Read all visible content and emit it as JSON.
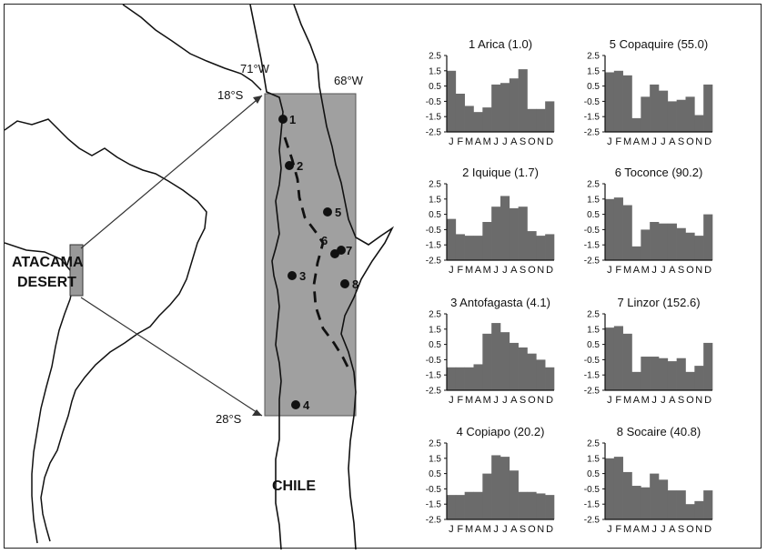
{
  "map": {
    "region_label_line1": "ATACAMA",
    "region_label_line2": "DESERT",
    "country_label": "CHILE",
    "lon_west_label": "71°W",
    "lon_east_label": "68°W",
    "lat_north_label": "18°S",
    "lat_south_label": "28°S",
    "stations": [
      {
        "number": "1",
        "name": "Arica"
      },
      {
        "number": "2",
        "name": "Iquique"
      },
      {
        "number": "3",
        "name": "Antofagasta"
      },
      {
        "number": "4",
        "name": "Copiapo"
      },
      {
        "number": "5",
        "name": "Copaquire"
      },
      {
        "number": "6",
        "name": "Toconce"
      },
      {
        "number": "7",
        "name": "Linzor"
      },
      {
        "number": "8",
        "name": "Socaire"
      }
    ],
    "colors": {
      "box_fill": "#a0a0a0",
      "line": "#111111",
      "dot": "#111111"
    }
  },
  "chart_data": [
    {
      "type": "bar",
      "title": "1 Arica (1.0)",
      "categories": [
        "J",
        "F",
        "M",
        "A",
        "M",
        "J",
        "J",
        "A",
        "S",
        "O",
        "N",
        "D"
      ],
      "values": [
        1.5,
        0.0,
        -0.8,
        -1.2,
        -0.9,
        0.6,
        0.7,
        1.0,
        1.6,
        -1.0,
        -1.0,
        -0.5
      ],
      "ylim": [
        -2.5,
        2.5
      ],
      "yticks": [
        "2.5",
        "1.5",
        "0.5",
        "-0.5",
        "-1.5",
        "-2.5"
      ]
    },
    {
      "type": "bar",
      "title": "5 Copaquire (55.0)",
      "categories": [
        "J",
        "F",
        "M",
        "A",
        "M",
        "J",
        "J",
        "A",
        "S",
        "O",
        "N",
        "D"
      ],
      "values": [
        1.4,
        1.5,
        1.2,
        -1.6,
        -0.2,
        0.6,
        0.2,
        -0.5,
        -0.4,
        -0.2,
        -1.4,
        0.6
      ],
      "ylim": [
        -2.5,
        2.5
      ],
      "yticks": [
        "2.5",
        "1.5",
        "0.5",
        "-0.5",
        "-1.5",
        "-2.5"
      ]
    },
    {
      "type": "bar",
      "title": "2 Iquique (1.7)",
      "categories": [
        "J",
        "F",
        "M",
        "A",
        "M",
        "J",
        "J",
        "A",
        "S",
        "O",
        "N",
        "D"
      ],
      "values": [
        0.2,
        -0.8,
        -0.9,
        -0.9,
        0.0,
        1.0,
        1.7,
        0.9,
        1.0,
        -0.6,
        -0.9,
        -0.8
      ],
      "ylim": [
        -2.5,
        2.5
      ],
      "yticks": [
        "2.5",
        "1.5",
        "0.5",
        "-0.5",
        "-1.5",
        "-2.5"
      ]
    },
    {
      "type": "bar",
      "title": "6 Toconce (90.2)",
      "categories": [
        "J",
        "F",
        "M",
        "A",
        "M",
        "J",
        "J",
        "A",
        "S",
        "O",
        "N",
        "D"
      ],
      "values": [
        1.5,
        1.6,
        1.1,
        -1.6,
        -0.5,
        0.0,
        -0.1,
        -0.1,
        -0.4,
        -0.7,
        -0.9,
        0.5
      ],
      "ylim": [
        -2.5,
        2.5
      ],
      "yticks": [
        "2.5",
        "1.5",
        "0.5",
        "-0.5",
        "-1.5",
        "-2.5"
      ]
    },
    {
      "type": "bar",
      "title": "3 Antofagasta (4.1)",
      "categories": [
        "J",
        "F",
        "M",
        "A",
        "M",
        "J",
        "J",
        "A",
        "S",
        "O",
        "N",
        "D"
      ],
      "values": [
        -1.0,
        -1.0,
        -1.0,
        -0.8,
        1.2,
        1.9,
        1.3,
        0.6,
        0.3,
        -0.1,
        -0.5,
        -1.0
      ],
      "ylim": [
        -2.5,
        2.5
      ],
      "yticks": [
        "2.5",
        "1.5",
        "0.5",
        "-0.5",
        "-1.5",
        "-2.5"
      ]
    },
    {
      "type": "bar",
      "title": "7 Linzor (152.6)",
      "categories": [
        "J",
        "F",
        "M",
        "A",
        "M",
        "J",
        "J",
        "A",
        "S",
        "O",
        "N",
        "D"
      ],
      "values": [
        1.6,
        1.7,
        1.2,
        -1.3,
        -0.3,
        -0.3,
        -0.4,
        -0.6,
        -0.4,
        -1.3,
        -0.9,
        0.6
      ],
      "ylim": [
        -2.5,
        2.5
      ],
      "yticks": [
        "2.5",
        "1.5",
        "0.5",
        "-0.5",
        "-1.5",
        "-2.5"
      ]
    },
    {
      "type": "bar",
      "title": "4 Copiapo (20.2)",
      "categories": [
        "J",
        "F",
        "M",
        "A",
        "M",
        "J",
        "J",
        "A",
        "S",
        "O",
        "N",
        "D"
      ],
      "values": [
        -0.9,
        -0.9,
        -0.7,
        -0.7,
        0.5,
        1.7,
        1.6,
        0.7,
        -0.7,
        -0.7,
        -0.8,
        -0.9
      ],
      "ylim": [
        -2.5,
        2.5
      ],
      "yticks": [
        "2.5",
        "1.5",
        "0.5",
        "-0.5",
        "-1.5",
        "-2.5"
      ]
    },
    {
      "type": "bar",
      "title": "8 Socaire (40.8)",
      "categories": [
        "J",
        "F",
        "M",
        "A",
        "M",
        "J",
        "J",
        "A",
        "S",
        "O",
        "N",
        "D"
      ],
      "values": [
        1.5,
        1.6,
        0.6,
        -0.3,
        -0.4,
        0.5,
        0.1,
        -0.6,
        -0.6,
        -1.5,
        -1.3,
        -0.6
      ],
      "ylim": [
        -2.5,
        2.5
      ],
      "yticks": [
        "2.5",
        "1.5",
        "0.5",
        "-0.5",
        "-1.5",
        "-2.5"
      ]
    }
  ]
}
